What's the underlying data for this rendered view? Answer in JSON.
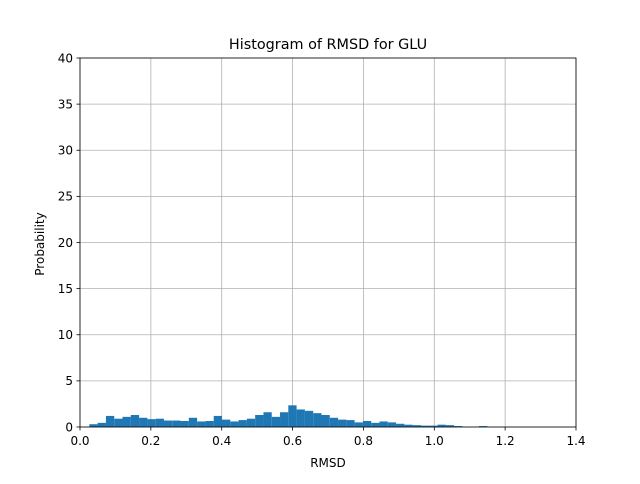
{
  "chart_data": {
    "type": "bar",
    "title": "Histogram of RMSD for GLU",
    "xlabel": "RMSD",
    "ylabel": "Probability",
    "xlim": [
      0.0,
      1.4
    ],
    "ylim": [
      0,
      40
    ],
    "grid": true,
    "bar_color": "#1f77b4",
    "bin_width": 0.0234,
    "bins_start": 0.0264,
    "values": [
      0.3,
      0.45,
      1.2,
      0.9,
      1.1,
      1.3,
      1.0,
      0.85,
      0.9,
      0.7,
      0.7,
      0.65,
      1.0,
      0.6,
      0.65,
      1.2,
      0.8,
      0.6,
      0.75,
      0.9,
      1.3,
      1.6,
      1.1,
      1.6,
      2.35,
      1.9,
      1.75,
      1.5,
      1.3,
      1.0,
      0.8,
      0.75,
      0.5,
      0.65,
      0.45,
      0.6,
      0.5,
      0.35,
      0.25,
      0.2,
      0.15,
      0.15,
      0.25,
      0.2,
      0.1,
      0.0,
      0.0,
      0.1,
      0.0,
      0.0,
      0.0
    ],
    "xticks": [
      {
        "value": 0.0,
        "label": "0.0"
      },
      {
        "value": 0.2,
        "label": "0.2"
      },
      {
        "value": 0.4,
        "label": "0.4"
      },
      {
        "value": 0.6,
        "label": "0.6"
      },
      {
        "value": 0.8,
        "label": "0.8"
      },
      {
        "value": 1.0,
        "label": "1.0"
      },
      {
        "value": 1.2,
        "label": "1.2"
      },
      {
        "value": 1.4,
        "label": "1.4"
      }
    ],
    "yticks": [
      {
        "value": 0,
        "label": "0"
      },
      {
        "value": 5,
        "label": "5"
      },
      {
        "value": 10,
        "label": "10"
      },
      {
        "value": 15,
        "label": "15"
      },
      {
        "value": 20,
        "label": "20"
      },
      {
        "value": 25,
        "label": "25"
      },
      {
        "value": 30,
        "label": "30"
      },
      {
        "value": 35,
        "label": "35"
      },
      {
        "value": 40,
        "label": "40"
      }
    ]
  }
}
